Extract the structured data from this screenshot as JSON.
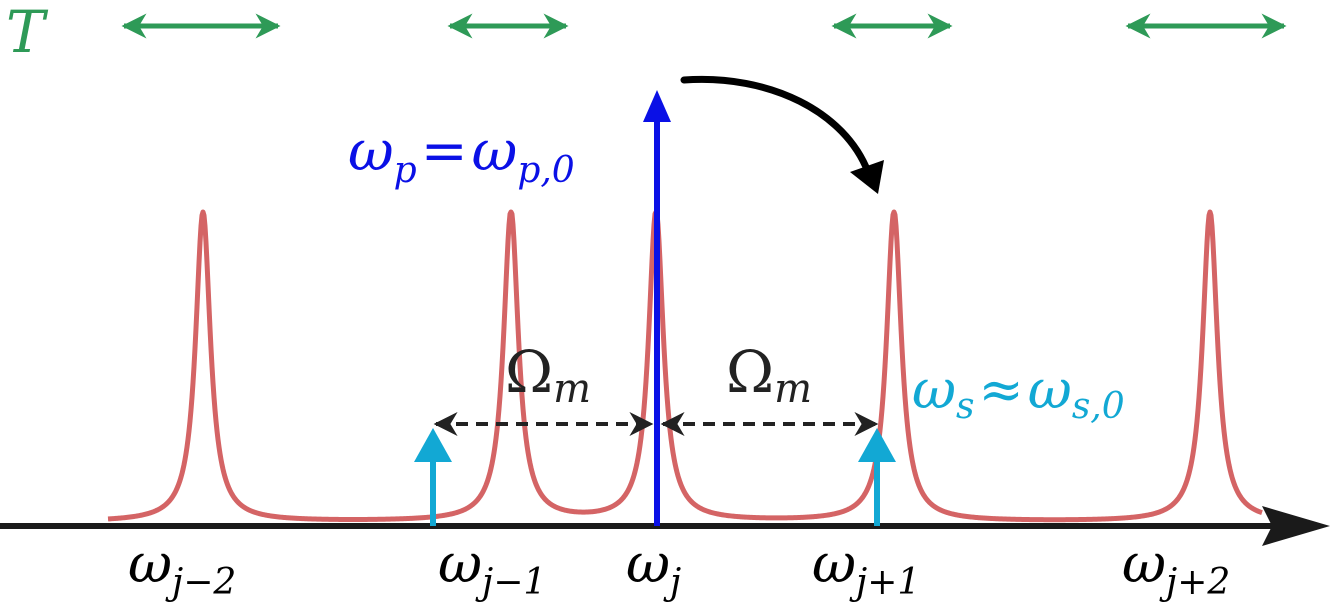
{
  "period": {
    "label": "T",
    "color": "#2e9a57"
  },
  "pump": {
    "symbol": "ω",
    "sub1": "p",
    "eq": "=",
    "sub2": "p,0",
    "color": "#0a10e6"
  },
  "signal": {
    "symbol": "ω",
    "sub1": "s",
    "approx": "≈",
    "sub2": "s,0",
    "color": "#12a8d4"
  },
  "spacing": {
    "symbol": "Ω",
    "sub": "m",
    "color": "#222222"
  },
  "resonance_color": "#d46465",
  "axis_color": "#1a1a1a",
  "transfer_arrow_color": "#000000",
  "resonances": [
    {
      "name": "res-j-minus-2",
      "sym": "ω",
      "sub": "j−2",
      "rel": -2
    },
    {
      "name": "res-j-minus-1",
      "sym": "ω",
      "sub": "j−1",
      "rel": -1
    },
    {
      "name": "res-j",
      "sym": "ω",
      "sub": "j",
      "rel": 0
    },
    {
      "name": "res-j-plus-1",
      "sym": "ω",
      "sub": "j+1",
      "rel": 1
    },
    {
      "name": "res-j-plus-2",
      "sym": "ω",
      "sub": "j+2",
      "rel": 2
    }
  ]
}
